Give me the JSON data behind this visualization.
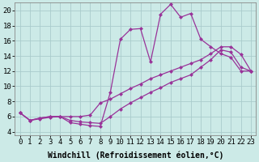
{
  "background_color": "#cceae7",
  "grid_color": "#aacccc",
  "line_color": "#993399",
  "xlabel": "Windchill (Refroidissement éolien,°C)",
  "xlim": [
    -0.5,
    23.5
  ],
  "ylim": [
    3.5,
    21.0
  ],
  "yticks": [
    4,
    6,
    8,
    10,
    12,
    14,
    16,
    18,
    20
  ],
  "xticks": [
    0,
    1,
    2,
    3,
    4,
    5,
    6,
    7,
    8,
    9,
    10,
    11,
    12,
    13,
    14,
    15,
    16,
    17,
    18,
    19,
    20,
    21,
    22,
    23
  ],
  "line1_x": [
    0,
    1,
    2,
    3,
    4,
    5,
    6,
    7,
    8,
    9,
    10,
    11,
    12,
    13,
    14,
    15,
    16,
    17,
    18,
    19,
    20,
    21,
    22,
    23
  ],
  "line1_y": [
    6.5,
    5.5,
    5.7,
    5.9,
    6.0,
    5.2,
    5.0,
    4.8,
    4.7,
    9.2,
    16.2,
    17.5,
    17.6,
    13.2,
    19.5,
    20.8,
    19.1,
    19.6,
    16.2,
    15.2,
    14.3,
    13.8,
    12.0,
    12.0
  ],
  "line2_x": [
    0,
    1,
    2,
    3,
    4,
    5,
    6,
    7,
    8,
    9,
    10,
    11,
    12,
    13,
    14,
    15,
    16,
    17,
    18,
    19,
    20,
    21,
    22,
    23
  ],
  "line2_y": [
    6.5,
    5.5,
    5.8,
    6.0,
    6.0,
    6.0,
    6.0,
    6.2,
    7.8,
    8.3,
    9.0,
    9.7,
    10.3,
    11.0,
    11.5,
    12.0,
    12.5,
    13.0,
    13.5,
    14.3,
    15.2,
    15.2,
    14.2,
    12.0
  ],
  "line3_x": [
    0,
    1,
    2,
    3,
    4,
    5,
    6,
    7,
    8,
    9,
    10,
    11,
    12,
    13,
    14,
    15,
    16,
    17,
    18,
    19,
    20,
    21,
    22,
    23
  ],
  "line3_y": [
    6.5,
    5.5,
    5.8,
    6.0,
    6.0,
    5.5,
    5.3,
    5.2,
    5.1,
    6.0,
    7.0,
    7.8,
    8.5,
    9.2,
    9.8,
    10.5,
    11.0,
    11.5,
    12.5,
    13.5,
    14.8,
    14.5,
    12.5,
    12.0
  ],
  "xlabel_fontsize": 7,
  "tick_fontsize": 6.5,
  "marker_size": 2.5
}
